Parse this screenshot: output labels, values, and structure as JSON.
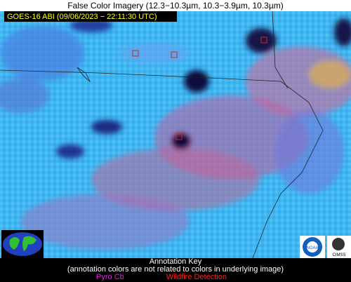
{
  "header": {
    "title": "False Color Imagery (12.3−10.3µm, 10.3−3.9µm, 10.3µm)"
  },
  "image_label": "GOES-16 ABI (09/06/2023 − 22:11:30 UTC)",
  "annotation_key": {
    "title": "Annotation Key",
    "note": "(annotation colors are not related to colors in underlying image)",
    "items": [
      {
        "label": "Pyro Cb",
        "color": "#e020e0"
      },
      {
        "label": "Wildfire Detection",
        "color": "#ff2020"
      }
    ]
  },
  "logos": [
    "NOAA",
    "CIMSS"
  ]
}
